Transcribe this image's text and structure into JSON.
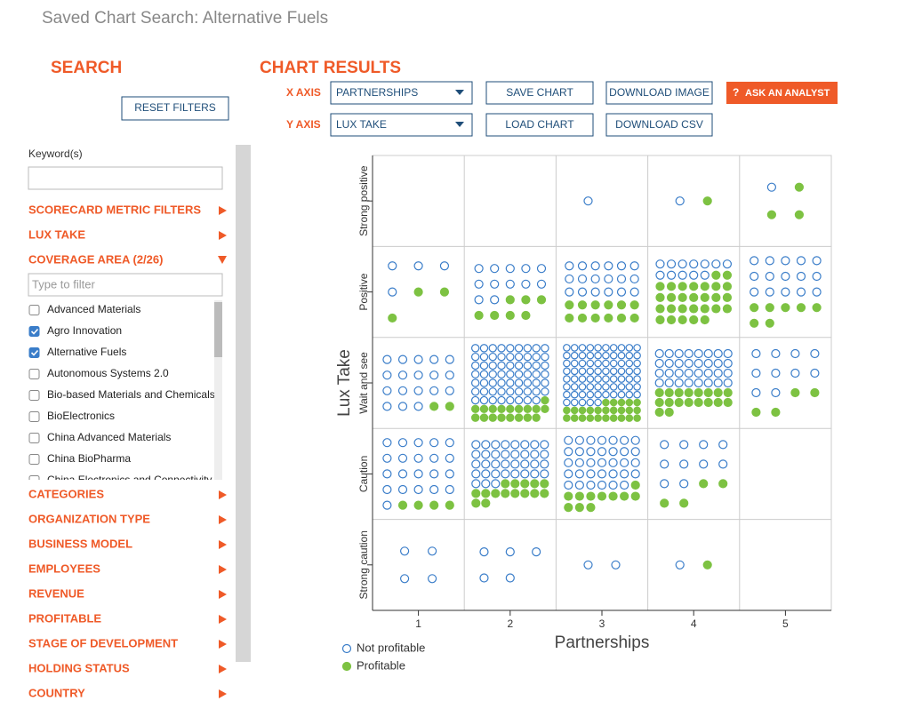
{
  "header": {
    "title": "Saved Chart Search: Alternative Fuels"
  },
  "search": {
    "title": "SEARCH",
    "reset_button": "RESET FILTERS",
    "keyword_label": "Keyword(s)",
    "filters_top": [
      "SCORECARD METRIC FILTERS",
      "LUX TAKE"
    ],
    "coverage": {
      "label": "COVERAGE AREA (2/26)",
      "filter_placeholder": "Type to filter",
      "options": [
        {
          "label": "Advanced Materials",
          "checked": false
        },
        {
          "label": "Agro Innovation",
          "checked": true
        },
        {
          "label": "Alternative Fuels",
          "checked": true
        },
        {
          "label": "Autonomous Systems 2.0",
          "checked": false
        },
        {
          "label": "Bio-based Materials and Chemicals",
          "checked": false
        },
        {
          "label": "BioElectronics",
          "checked": false
        },
        {
          "label": "China Advanced Materials",
          "checked": false
        },
        {
          "label": "China BioPharma",
          "checked": false
        },
        {
          "label": "China Electronics and Connectivity",
          "checked": false
        }
      ]
    },
    "filters_bottom": [
      "CATEGORIES",
      "ORGANIZATION TYPE",
      "BUSINESS MODEL",
      "EMPLOYEES",
      "REVENUE",
      "PROFITABLE",
      "STAGE OF DEVELOPMENT",
      "HOLDING STATUS",
      "COUNTRY"
    ]
  },
  "controls": {
    "title": "CHART RESULTS",
    "x_axis_label": "X AXIS",
    "x_axis_value": "PARTNERSHIPS",
    "y_axis_label": "Y AXIS",
    "y_axis_value": "LUX TAKE",
    "buttons": [
      "SAVE CHART",
      "DOWNLOAD IMAGE",
      "LOAD CHART",
      "DOWNLOAD CSV"
    ],
    "ask": "ASK AN ANALYST"
  },
  "chart_data": {
    "type": "dot-grid",
    "x_label": "Partnerships",
    "y_label": "Lux Take",
    "categories": [
      "1",
      "2",
      "3",
      "4",
      "5"
    ],
    "rows": [
      "Strong positive",
      "Positive",
      "Wait and see",
      "Caution",
      "Strong caution"
    ],
    "series": [
      {
        "name": "Not profitable",
        "color": "#3a7dc9",
        "filled": false,
        "values": [
          [
            0,
            0,
            1,
            1,
            1
          ],
          [
            4,
            12,
            18,
            12,
            15
          ],
          [
            18,
            62,
            75,
            32,
            10
          ],
          [
            21,
            35,
            34,
            10,
            0
          ],
          [
            4,
            5,
            2,
            1,
            0
          ]
        ]
      },
      {
        "name": "Profitable",
        "color": "#7dc242",
        "filled": true,
        "values": [
          [
            0,
            0,
            0,
            1,
            3
          ],
          [
            3,
            7,
            12,
            28,
            7
          ],
          [
            2,
            18,
            25,
            18,
            4
          ],
          [
            4,
            15,
            11,
            4,
            0
          ],
          [
            0,
            0,
            0,
            1,
            0
          ]
        ]
      }
    ]
  }
}
